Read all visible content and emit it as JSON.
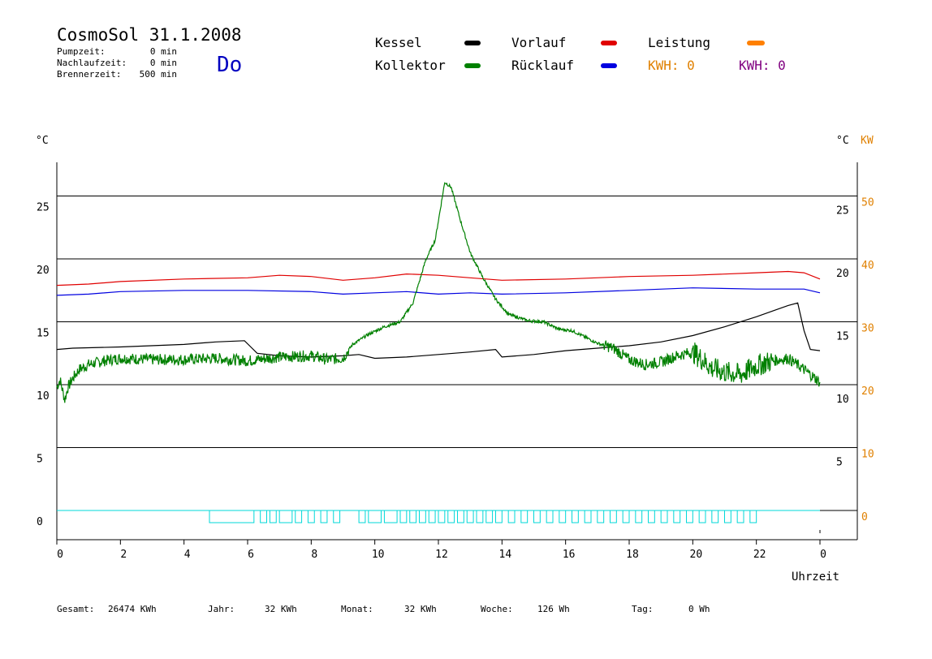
{
  "header": {
    "title": "CosmoSol 31.1.2008",
    "day": "Do",
    "stats": [
      {
        "label": "Pumpzeit:",
        "value": "0 min"
      },
      {
        "label": "Nachlaufzeit:",
        "value": "0 min"
      },
      {
        "label": "Brennerzeit:",
        "value": "500 min"
      }
    ]
  },
  "legend": [
    {
      "label": "Kessel",
      "color": "#000000"
    },
    {
      "label": "Kollektor",
      "color": "#008000"
    },
    {
      "label": "Vorlauf",
      "color": "#e00000"
    },
    {
      "label": "Rücklauf",
      "color": "#0000e0"
    },
    {
      "label": "Leistung",
      "color": "#ff8000"
    }
  ],
  "kwh_labels": [
    {
      "text": "KWH: 0",
      "color": "#e08000"
    },
    {
      "text": "KWH: 0",
      "color": "#800080"
    }
  ],
  "footer": [
    {
      "label": "Gesamt:",
      "value": "26474 KWh"
    },
    {
      "label": "Jahr:",
      "value": "32 KWh"
    },
    {
      "label": "Monat:",
      "value": "32 KWh"
    },
    {
      "label": "Woche:",
      "value": "126 Wh"
    },
    {
      "label": "Tag:",
      "value": "0 Wh"
    }
  ],
  "colors": {
    "grid": "#000000",
    "kw_axis": "#e08000",
    "pump": "#00d8d8",
    "pump_dark": "#b00000"
  },
  "chart_data": {
    "type": "line",
    "xlabel": "Uhrzeit",
    "ylabel_left": "°C",
    "ylabel_right_1": "°C",
    "ylabel_right_2": "KW",
    "x_ticks": [
      "0",
      "2",
      "4",
      "6",
      "8",
      "10",
      "12",
      "14",
      "16",
      "18",
      "20",
      "22",
      "0"
    ],
    "xlim": [
      0,
      24
    ],
    "left_ticks": [
      "0",
      "5",
      "10",
      "15",
      "20",
      "25"
    ],
    "right_c_ticks": [
      "5",
      "10",
      "15",
      "20",
      "25"
    ],
    "right_kw_ticks": [
      "0",
      "10",
      "20",
      "30",
      "40",
      "50"
    ],
    "ylim": [
      -2,
      27.5
    ],
    "series": [
      {
        "name": "Vorlauf",
        "color": "#e00000",
        "points": [
          [
            0,
            17.9
          ],
          [
            1,
            18.0
          ],
          [
            2,
            18.2
          ],
          [
            4,
            18.4
          ],
          [
            6,
            18.5
          ],
          [
            7,
            18.7
          ],
          [
            8,
            18.6
          ],
          [
            9,
            18.3
          ],
          [
            10,
            18.5
          ],
          [
            11,
            18.8
          ],
          [
            12,
            18.7
          ],
          [
            13,
            18.5
          ],
          [
            14,
            18.3
          ],
          [
            16,
            18.4
          ],
          [
            18,
            18.6
          ],
          [
            20,
            18.7
          ],
          [
            22,
            18.9
          ],
          [
            23,
            19.0
          ],
          [
            23.5,
            18.9
          ],
          [
            24,
            18.4
          ]
        ]
      },
      {
        "name": "Rücklauf",
        "color": "#0000e0",
        "points": [
          [
            0,
            17.1
          ],
          [
            1,
            17.2
          ],
          [
            2,
            17.4
          ],
          [
            4,
            17.5
          ],
          [
            6,
            17.5
          ],
          [
            8,
            17.4
          ],
          [
            9,
            17.2
          ],
          [
            10,
            17.3
          ],
          [
            11,
            17.4
          ],
          [
            12,
            17.2
          ],
          [
            13,
            17.3
          ],
          [
            14,
            17.2
          ],
          [
            16,
            17.3
          ],
          [
            18,
            17.5
          ],
          [
            20,
            17.7
          ],
          [
            22,
            17.6
          ],
          [
            23.5,
            17.6
          ],
          [
            24,
            17.3
          ]
        ]
      },
      {
        "name": "Kessel",
        "color": "#000000",
        "points": [
          [
            0,
            12.8
          ],
          [
            0.5,
            12.9
          ],
          [
            2,
            13.0
          ],
          [
            4,
            13.2
          ],
          [
            5,
            13.4
          ],
          [
            5.9,
            13.5
          ],
          [
            6.1,
            13.0
          ],
          [
            6.3,
            12.5
          ],
          [
            7,
            12.3
          ],
          [
            8,
            12.2
          ],
          [
            9,
            12.3
          ],
          [
            9.5,
            12.4
          ],
          [
            10,
            12.1
          ],
          [
            11,
            12.2
          ],
          [
            12,
            12.4
          ],
          [
            13,
            12.6
          ],
          [
            13.8,
            12.8
          ],
          [
            14,
            12.2
          ],
          [
            15,
            12.4
          ],
          [
            16,
            12.7
          ],
          [
            17,
            12.9
          ],
          [
            18,
            13.1
          ],
          [
            19,
            13.4
          ],
          [
            20,
            13.9
          ],
          [
            21,
            14.6
          ],
          [
            22,
            15.4
          ],
          [
            23,
            16.3
          ],
          [
            23.3,
            16.5
          ],
          [
            23.5,
            14.3
          ],
          [
            23.7,
            12.8
          ],
          [
            24,
            12.7
          ]
        ]
      },
      {
        "name": "Kollektor",
        "color": "#008000",
        "points": [
          [
            0,
            9.8
          ],
          [
            0.1,
            10.4
          ],
          [
            0.25,
            8.8
          ],
          [
            0.35,
            9.8
          ],
          [
            0.5,
            10.5
          ],
          [
            0.7,
            11.2
          ],
          [
            1,
            11.6
          ],
          [
            1.5,
            11.9
          ],
          [
            2,
            12.1
          ],
          [
            3,
            12.0
          ],
          [
            4,
            12.0
          ],
          [
            5,
            12.1
          ],
          [
            6,
            11.9
          ],
          [
            7,
            12.2
          ],
          [
            8,
            12.3
          ],
          [
            8.5,
            12.0
          ],
          [
            9,
            12.1
          ],
          [
            9.3,
            13.2
          ],
          [
            9.8,
            14.0
          ],
          [
            10.3,
            14.6
          ],
          [
            10.8,
            15.0
          ],
          [
            11.2,
            16.5
          ],
          [
            11.6,
            19.9
          ],
          [
            11.9,
            21.5
          ],
          [
            12.2,
            26.1
          ],
          [
            12.4,
            25.7
          ],
          [
            12.7,
            23.0
          ],
          [
            13.0,
            20.5
          ],
          [
            13.4,
            18.5
          ],
          [
            13.8,
            16.8
          ],
          [
            14.2,
            15.6
          ],
          [
            14.8,
            15.1
          ],
          [
            15.3,
            15.0
          ],
          [
            15.8,
            14.4
          ],
          [
            16.2,
            14.3
          ],
          [
            16.6,
            13.8
          ],
          [
            17.0,
            13.3
          ],
          [
            17.5,
            12.9
          ],
          [
            18,
            12.0
          ],
          [
            18.5,
            11.6
          ],
          [
            19,
            11.8
          ],
          [
            19.5,
            12.3
          ],
          [
            20,
            12.6
          ],
          [
            20.3,
            12.0
          ],
          [
            20.6,
            11.3
          ],
          [
            21,
            11.0
          ],
          [
            21.5,
            10.8
          ],
          [
            22,
            11.5
          ],
          [
            22.5,
            11.9
          ],
          [
            23,
            12.1
          ],
          [
            23.5,
            11.2
          ],
          [
            24,
            10.2
          ]
        ]
      }
    ],
    "pump_pulses": [
      [
        4.8,
        6.2
      ],
      [
        6.4,
        6.6
      ],
      [
        6.7,
        6.9
      ],
      [
        7.0,
        7.4
      ],
      [
        7.5,
        7.7
      ],
      [
        7.9,
        8.1
      ],
      [
        8.3,
        8.5
      ],
      [
        8.7,
        8.9
      ],
      [
        9.5,
        9.7
      ],
      [
        9.8,
        10.2
      ],
      [
        10.3,
        10.7
      ],
      [
        10.8,
        11.0
      ],
      [
        11.1,
        11.3
      ],
      [
        11.4,
        11.6
      ],
      [
        11.7,
        11.9
      ],
      [
        12.0,
        12.2
      ],
      [
        12.3,
        12.5
      ],
      [
        12.6,
        12.8
      ],
      [
        12.9,
        13.1
      ],
      [
        13.2,
        13.4
      ],
      [
        13.5,
        13.7
      ],
      [
        13.8,
        14.0
      ],
      [
        14.2,
        14.4
      ],
      [
        14.6,
        14.8
      ],
      [
        15.0,
        15.2
      ],
      [
        15.4,
        15.6
      ],
      [
        15.8,
        16.0
      ],
      [
        16.2,
        16.4
      ],
      [
        16.6,
        16.8
      ],
      [
        17.0,
        17.2
      ],
      [
        17.4,
        17.6
      ],
      [
        17.8,
        18.0
      ],
      [
        18.2,
        18.4
      ],
      [
        18.6,
        18.8
      ],
      [
        19.0,
        19.2
      ],
      [
        19.4,
        19.6
      ],
      [
        19.8,
        20.0
      ],
      [
        20.2,
        20.4
      ],
      [
        20.6,
        20.8
      ],
      [
        21.0,
        21.2
      ],
      [
        21.4,
        21.6
      ],
      [
        21.8,
        22.0
      ]
    ]
  }
}
